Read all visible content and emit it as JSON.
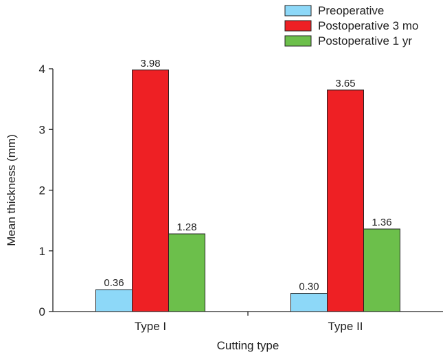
{
  "chart_data": {
    "type": "bar",
    "categories": [
      "Type I",
      "Type II"
    ],
    "series": [
      {
        "name": "Preoperative",
        "values": [
          0.36,
          0.3
        ],
        "color": "#8dd8f8"
      },
      {
        "name": "Postoperative 3 mo",
        "values": [
          3.98,
          3.65
        ],
        "color": "#ee2024"
      },
      {
        "name": "Postoperative 1 yr",
        "values": [
          1.28,
          1.36
        ],
        "color": "#6cbf4b"
      }
    ],
    "value_labels": [
      [
        "0.36",
        "0.30"
      ],
      [
        "3.98",
        "3.65"
      ],
      [
        "1.28",
        "1.36"
      ]
    ],
    "xlabel": "Cutting type",
    "ylabel": "Mean thickness (mm)",
    "ylim": [
      0,
      4
    ],
    "yticks": [
      0,
      1,
      2,
      3,
      4
    ],
    "ytick_labels": [
      "0",
      "1",
      "2",
      "3",
      "4"
    ],
    "grid": false,
    "legend_position": "top-right"
  }
}
